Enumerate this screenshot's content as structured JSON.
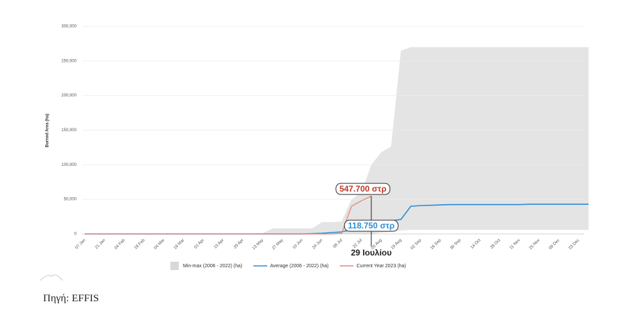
{
  "chart_data": {
    "type": "line",
    "y_label": "Burned Area (ha)",
    "categories": [
      "07 Jan",
      null,
      "21 Jan",
      null,
      "04 Feb",
      null,
      "18 Feb",
      null,
      "04 Mar",
      null,
      "18 Mar",
      null,
      "01 Apr",
      null,
      "15 Apr",
      null,
      "29 Apr",
      null,
      "13 May",
      null,
      "27 May",
      null,
      "10 Jun",
      null,
      "24 Jun",
      null,
      "08 Jul",
      null,
      "22 Jul",
      null,
      "05 Aug",
      null,
      "19 Aug",
      null,
      "02 Sep",
      null,
      "16 Sep",
      null,
      "30 Sep",
      null,
      "14 Oct",
      null,
      "28 Oct",
      null,
      "11 Nov",
      null,
      "25 Nov",
      null,
      "09 Dec",
      null,
      "23 Dec",
      null
    ],
    "series": [
      {
        "name": "Min-max (2006 - 2022) (ha)",
        "color": "#e4e4e4",
        "values": [
          0,
          0,
          0,
          0,
          0,
          0,
          0,
          0,
          0,
          0,
          0,
          0,
          0,
          0,
          0,
          0,
          0,
          0,
          1000,
          8000,
          8000,
          8000,
          8000,
          8000,
          17000,
          17000,
          18000,
          50000,
          60000,
          100000,
          118000,
          126000,
          265000,
          270000,
          270000,
          270000,
          270000,
          270000,
          270000,
          270000,
          270000,
          270000,
          270000,
          270000,
          270000,
          270000,
          270000,
          270000,
          270000,
          270000,
          270000,
          270000
        ],
        "low": [
          0,
          0,
          0,
          0,
          0,
          0,
          0,
          0,
          0,
          0,
          0,
          0,
          0,
          0,
          0,
          0,
          0,
          0,
          0,
          0,
          0,
          0,
          0,
          0,
          0,
          0,
          0,
          0,
          0,
          0,
          2000,
          3000,
          5000,
          6000,
          6000,
          6000,
          6000,
          6000,
          6000,
          6000,
          6000,
          6000,
          6000,
          6000,
          6000,
          6000,
          6000,
          6000,
          6000,
          6000,
          6000,
          6000
        ]
      },
      {
        "name": "Average (2006 - 2022) (ha)",
        "color": "#2b8fd6",
        "values": [
          0,
          0,
          0,
          0,
          0,
          0,
          0,
          0,
          0,
          0,
          0,
          0,
          0,
          0,
          0,
          0,
          0,
          0,
          0,
          0,
          0,
          0,
          0,
          500,
          1000,
          2000,
          3000,
          6000,
          9000,
          11875,
          17000,
          19000,
          21000,
          40000,
          41000,
          41500,
          42000,
          42500,
          42500,
          42500,
          42500,
          42500,
          42500,
          42500,
          42500,
          43000,
          43000,
          43000,
          43000,
          43000,
          43000,
          43000
        ],
        "value_labels": [
          null,
          null,
          null,
          null,
          null,
          null,
          null,
          null,
          null,
          null,
          null,
          null,
          null,
          null,
          null,
          null,
          null,
          null,
          null,
          null,
          null,
          null,
          null,
          null,
          null,
          null,
          null,
          null,
          null,
          "118.750 στρ",
          null,
          null,
          null,
          null,
          null,
          null,
          null,
          null,
          null,
          null,
          null,
          null,
          null,
          null,
          null,
          null,
          null,
          null,
          null,
          null,
          null,
          null
        ]
      },
      {
        "name": "Current Year 2023 (ha)",
        "color": "#e8857c",
        "values": [
          0,
          0,
          0,
          0,
          0,
          0,
          0,
          0,
          0,
          0,
          0,
          0,
          0,
          0,
          0,
          0,
          0,
          0,
          0,
          0,
          0,
          0,
          0,
          0,
          0,
          0,
          1000,
          40000,
          48000,
          54770,
          null,
          null,
          null,
          null,
          null,
          null,
          null,
          null,
          null,
          null,
          null,
          null,
          null,
          null,
          null,
          null,
          null,
          null,
          null,
          null,
          null,
          null
        ],
        "value_labels": [
          null,
          null,
          null,
          null,
          null,
          null,
          null,
          null,
          null,
          null,
          null,
          null,
          null,
          null,
          null,
          null,
          null,
          null,
          null,
          null,
          null,
          null,
          null,
          null,
          null,
          null,
          null,
          null,
          null,
          "547.700 στρ",
          null,
          null,
          null,
          null,
          null,
          null,
          null,
          null,
          null,
          null,
          null,
          null,
          null,
          null,
          null,
          null,
          null,
          null,
          null,
          null,
          null,
          null
        ]
      }
    ],
    "annotation": "29 Ιουλίου",
    "ylim": [
      0,
      300000
    ],
    "yticks": [
      0,
      {
        "value": 50000,
        "label": "50,000"
      },
      {
        "value": 100000,
        "label": "100,000"
      },
      {
        "value": 150000,
        "label": "150,000"
      },
      {
        "value": 200000,
        "label": "200,000"
      },
      {
        "value": 250000,
        "label": "250,000"
      },
      {
        "value": 300000,
        "label": "300,000"
      }
    ],
    "grid": true
  },
  "source": "Πηγή: EFFIS"
}
